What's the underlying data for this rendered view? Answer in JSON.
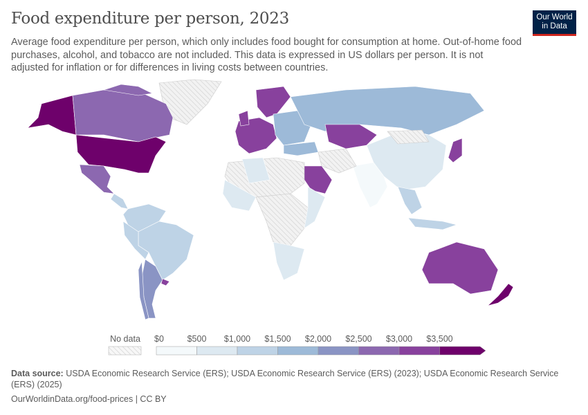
{
  "header": {
    "title": "Food expenditure per person, 2023",
    "subtitle": "Average food expenditure per person, which only includes food bought for consumption at home. Out-of-home food purchases, alcohol, and tobacco are not included. This data is expressed in US dollars per person. It is not adjusted for inflation or for differences in living costs between countries.",
    "logo_line1": "Our World",
    "logo_line2": "in Data"
  },
  "legend": {
    "no_data_label": "No data",
    "tick_labels": [
      "$0",
      "$500",
      "$1,000",
      "$1,500",
      "$2,000",
      "$2,500",
      "$3,000",
      "$3,500"
    ],
    "bins": [
      0,
      500,
      1000,
      1500,
      2000,
      2500,
      3000,
      3500
    ],
    "colors": [
      "#f4f9fb",
      "#dde9f1",
      "#bed3e6",
      "#9dbad8",
      "#8a94c4",
      "#8c68b0",
      "#88419d",
      "#6e016b"
    ],
    "no_data_color": "#e0e0e0"
  },
  "map_colors": {
    "usa": "#6e016b",
    "canada": "#8c68b0",
    "alaska": "#6e016b",
    "mexico": "#8c68b0",
    "central_america": "#bed3e6",
    "south_america_north": "#bed3e6",
    "brazil": "#bed3e6",
    "argentina": "#8a94c4",
    "chile": "#8a94c4",
    "uruguay": "#88419d",
    "western_europe": "#88419d",
    "nordics": "#88419d",
    "eastern_europe": "#9dbad8",
    "russia": "#9dbad8",
    "kazakhstan": "#88419d",
    "china": "#dde9f1",
    "india": "#f4f9fb",
    "southeast_asia": "#bed3e6",
    "japan": "#88419d",
    "saudi_arabia": "#88419d",
    "africa_data": "#dde9f1",
    "australia": "#88419d",
    "new_zealand": "#6e016b",
    "greenland": "#8c68b0",
    "no_data": "#e5e5e5"
  },
  "footer": {
    "source_label": "Data source:",
    "source_text": "USDA Economic Research Service (ERS); USDA Economic Research Service (ERS) (2023); USDA Economic Research Service (ERS) (2025)",
    "url_license": "OurWorldinData.org/food-prices | CC BY"
  }
}
